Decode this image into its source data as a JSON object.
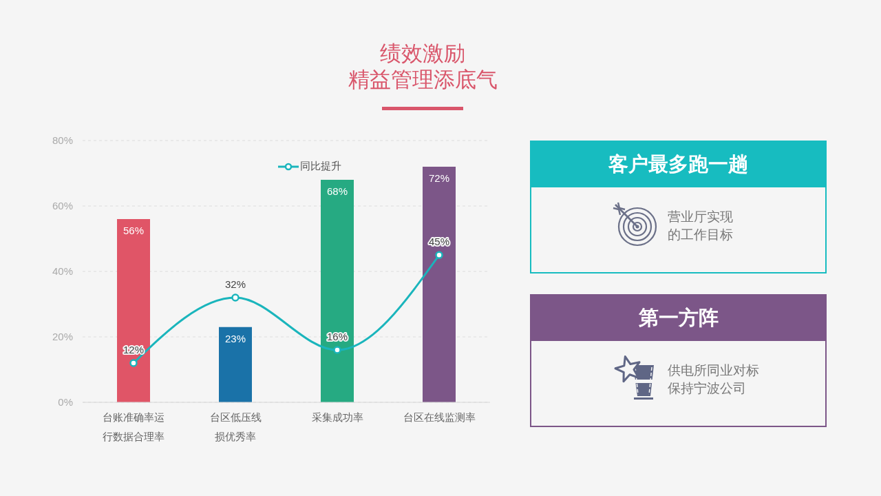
{
  "chart_data": [
    {
      "type": "bar",
      "title": "绩效激励",
      "subtitle": "精益管理添底气",
      "categories": [
        "台账准确率运行数据合理率",
        "台区低压线损优秀率",
        "采集成功率",
        "台区在线监测率"
      ],
      "series": [
        {
          "colors": [
            "#e05567",
            "#1a72a8",
            "#26aa82",
            "#7c5688"
          ],
          "values": [
            56,
            23,
            68,
            72
          ],
          "value_labels": [
            "56%",
            "23%",
            "68%",
            "72%"
          ]
        },
        {
          "type": "line",
          "name": "同比提升",
          "color": "#1ab5bc",
          "values": [
            12,
            32,
            16,
            45
          ],
          "value_labels": [
            "12%",
            "32%",
            "16%",
            "45%"
          ]
        }
      ],
      "ylim": [
        0,
        80
      ],
      "yticks": [
        {
          "value": 0,
          "label": "0%"
        },
        {
          "value": 20,
          "label": "20%"
        },
        {
          "value": 40,
          "label": "40%"
        },
        {
          "value": 60,
          "label": "60%"
        },
        {
          "value": 80,
          "label": "80%"
        }
      ],
      "grid": "y",
      "legend": "top",
      "marker": "circle"
    },
    {
      "type": "other",
      "title": "客户最多跑一趟",
      "annotations": [
        "营业厅实现的工作目标"
      ],
      "color": "#17bcc0"
    },
    {
      "type": "other",
      "title": "第一方阵",
      "annotations": [
        "供电所同业对标保持宁波公司"
      ],
      "color": "#7c5688"
    }
  ]
}
